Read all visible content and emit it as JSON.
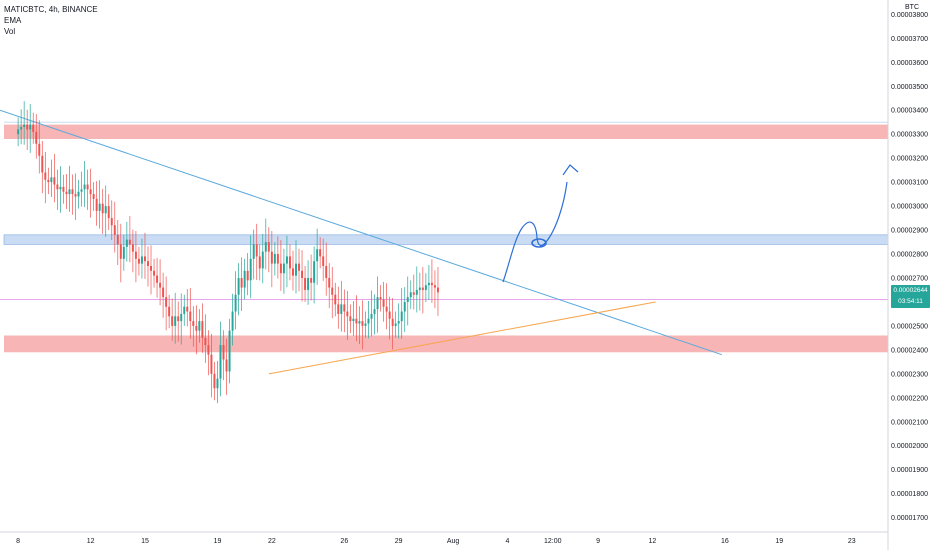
{
  "header": {
    "symbol_line": "MATICBTC, 4h, BINANCE",
    "indicator_1": "EMA",
    "indicator_2": "Vol",
    "currency": "BTC"
  },
  "price_badge": {
    "price": "0.00002644",
    "countdown": "03:54:11",
    "color": "#26a69a"
  },
  "chart_data": {
    "type": "candlestick",
    "symbol": "MATICBTC",
    "timeframe": "4h",
    "exchange": "BINANCE",
    "y_axis": {
      "ticks": [
        "0.00001700",
        "0.00001800",
        "0.00001900",
        "0.00002000",
        "0.00002100",
        "0.00002200",
        "0.00002300",
        "0.00002400",
        "0.00002500",
        "0.00002600",
        "0.00002700",
        "0.00002800",
        "0.00002900",
        "0.00003000",
        "0.00003100",
        "0.00003200",
        "0.00003300",
        "0.00003400",
        "0.00003500",
        "0.00003600",
        "0.00003700",
        "0.00003800"
      ],
      "range": [
        1.64e-05,
        3.86e-05
      ]
    },
    "x_axis": {
      "ticks": [
        {
          "label": "8",
          "idx": 0
        },
        {
          "label": "12",
          "idx": 24
        },
        {
          "label": "15",
          "idx": 42
        },
        {
          "label": "19",
          "idx": 66
        },
        {
          "label": "22",
          "idx": 84
        },
        {
          "label": "26",
          "idx": 108
        },
        {
          "label": "29",
          "idx": 126
        },
        {
          "label": "Aug",
          "idx": 144
        },
        {
          "label": "4",
          "idx": 162
        },
        {
          "label": "12:00",
          "idx": 177
        },
        {
          "label": "9",
          "idx": 192
        },
        {
          "label": "12",
          "idx": 210
        },
        {
          "label": "16",
          "idx": 234
        },
        {
          "label": "19",
          "idx": 252
        },
        {
          "label": "23",
          "idx": 276
        }
      ],
      "idx_range": [
        -6,
        288
      ]
    },
    "close_prices": [
      3.32e-05,
      3.33e-05,
      3.34e-05,
      3.32e-05,
      3.34e-05,
      3.31e-05,
      3.26e-05,
      3.21e-05,
      3.14e-05,
      3.11e-05,
      3.1e-05,
      3.12e-05,
      3.09e-05,
      3.07e-05,
      3.08e-05,
      3.06e-05,
      3.05e-05,
      3.07e-05,
      3.05e-05,
      3.04e-05,
      3.06e-05,
      3.07e-05,
      3.09e-05,
      3.07e-05,
      3.05e-05,
      3.03e-05,
      2.98e-05,
      3.01e-05,
      2.97e-05,
      3e-05,
      2.95e-05,
      2.92e-05,
      2.88e-05,
      2.84e-05,
      2.78e-05,
      2.83e-05,
      2.86e-05,
      2.84e-05,
      2.81e-05,
      2.78e-05,
      2.76e-05,
      2.79e-05,
      2.77e-05,
      2.75e-05,
      2.73e-05,
      2.71e-05,
      2.68e-05,
      2.66e-05,
      2.62e-05,
      2.58e-05,
      2.54e-05,
      2.5e-05,
      2.54e-05,
      2.52e-05,
      2.55e-05,
      2.58e-05,
      2.56e-05,
      2.52e-05,
      2.5e-05,
      2.48e-05,
      2.52e-05,
      2.45e-05,
      2.42e-05,
      2.38e-05,
      2.3e-05,
      2.24e-05,
      2.28e-05,
      2.42e-05,
      2.36e-05,
      2.31e-05,
      2.48e-05,
      2.56e-05,
      2.63e-05,
      2.7e-05,
      2.66e-05,
      2.73e-05,
      2.69e-05,
      2.78e-05,
      2.84e-05,
      2.79e-05,
      2.74e-05,
      2.81e-05,
      2.85e-05,
      2.81e-05,
      2.76e-05,
      2.8e-05,
      2.76e-05,
      2.72e-05,
      2.76e-05,
      2.79e-05,
      2.74e-05,
      2.71e-05,
      2.76e-05,
      2.73e-05,
      2.7e-05,
      2.65e-05,
      2.7e-05,
      2.68e-05,
      2.77e-05,
      2.82e-05,
      2.79e-05,
      2.75e-05,
      2.7e-05,
      2.66e-05,
      2.63e-05,
      2.59e-05,
      2.55e-05,
      2.59e-05,
      2.56e-05,
      2.54e-05,
      2.52e-05,
      2.53e-05,
      2.51e-05,
      2.52e-05,
      2.5e-05,
      2.51e-05,
      2.53e-05,
      2.55e-05,
      2.57e-05,
      2.62e-05,
      2.61e-05,
      2.58e-05,
      2.56e-05,
      2.53e-05,
      2.5e-05,
      2.51e-05,
      2.52e-05,
      2.56e-05,
      2.6e-05,
      2.62e-05,
      2.64e-05,
      2.63e-05,
      2.65e-05,
      2.66e-05,
      2.65e-05,
      2.67e-05,
      2.68e-05,
      2.67e-05,
      2.66e-05,
      2.64e-05
    ],
    "zones": [
      {
        "name": "resistance-zone",
        "from": 3.28e-05,
        "to": 3.34e-05,
        "color": "#f7b5b5"
      },
      {
        "name": "midline-zone",
        "from": 2.84e-05,
        "to": 2.88e-05,
        "color": "#c9dcf3"
      },
      {
        "name": "support-zone",
        "from": 2.39e-05,
        "to": 2.46e-05,
        "color": "#f7b5b5"
      }
    ],
    "lines": [
      {
        "name": "descending-trendline",
        "color": "#5aa9de",
        "from": {
          "idx": -6,
          "price": 3.4e-05
        },
        "to": {
          "idx": 233,
          "price": 2.38e-05
        }
      },
      {
        "name": "ascending-trendline",
        "color": "#f8a44c",
        "from": {
          "idx": 83,
          "price": 2.3e-05
        },
        "to": {
          "idx": 211,
          "price": 2.6e-05
        }
      }
    ],
    "last_price": 2.644e-05,
    "last_price_line_color": "#e186e8",
    "ema_color": "#cfd2dc"
  }
}
